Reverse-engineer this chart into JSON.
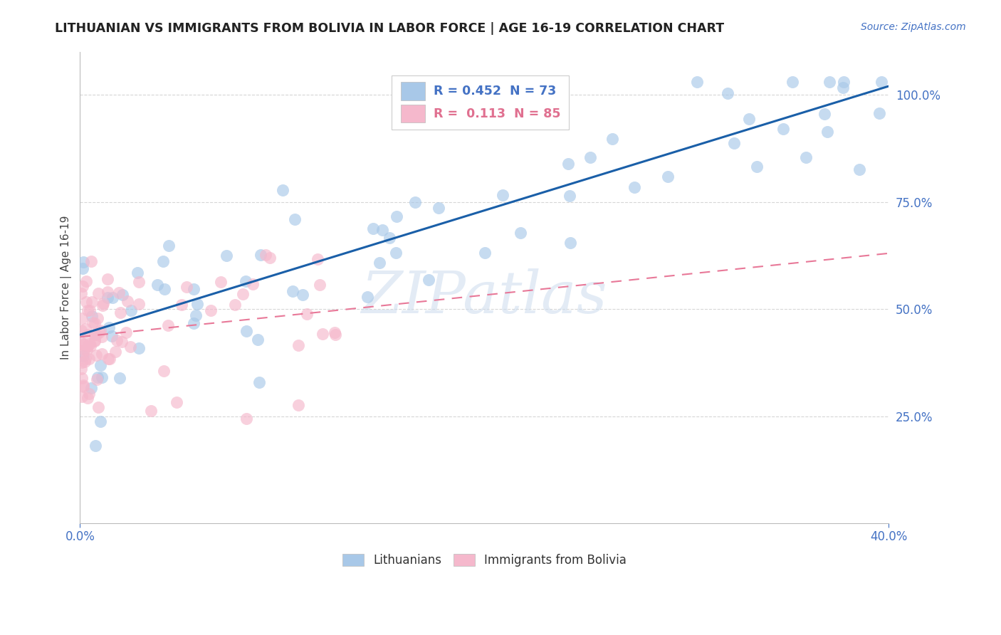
{
  "title": "LITHUANIAN VS IMMIGRANTS FROM BOLIVIA IN LABOR FORCE | AGE 16-19 CORRELATION CHART",
  "source_text": "Source: ZipAtlas.com",
  "ylabel": "In Labor Force | Age 16-19",
  "xlim": [
    0.0,
    0.4
  ],
  "ylim": [
    0.0,
    1.1
  ],
  "xtick_vals": [
    0.0,
    0.4
  ],
  "xtick_labels": [
    "0.0%",
    "40.0%"
  ],
  "ytick_vals": [
    0.25,
    0.5,
    0.75,
    1.0
  ],
  "ytick_labels": [
    "25.0%",
    "50.0%",
    "75.0%",
    "100.0%"
  ],
  "blue_color": "#a8c8e8",
  "blue_line_color": "#1a5fa8",
  "pink_color": "#f5b8cc",
  "pink_line_color": "#e87898",
  "R_blue": 0.452,
  "N_blue": 73,
  "R_pink": 0.113,
  "N_pink": 85,
  "legend_label_blue": "Lithuanians",
  "legend_label_pink": "Immigrants from Bolivia",
  "watermark": "ZIPatlas",
  "blue_trend_x0": 0.0,
  "blue_trend_y0": 0.44,
  "blue_trend_x1": 0.4,
  "blue_trend_y1": 1.02,
  "pink_trend_x0": 0.0,
  "pink_trend_y0": 0.435,
  "pink_trend_x1": 0.4,
  "pink_trend_y1": 0.63
}
